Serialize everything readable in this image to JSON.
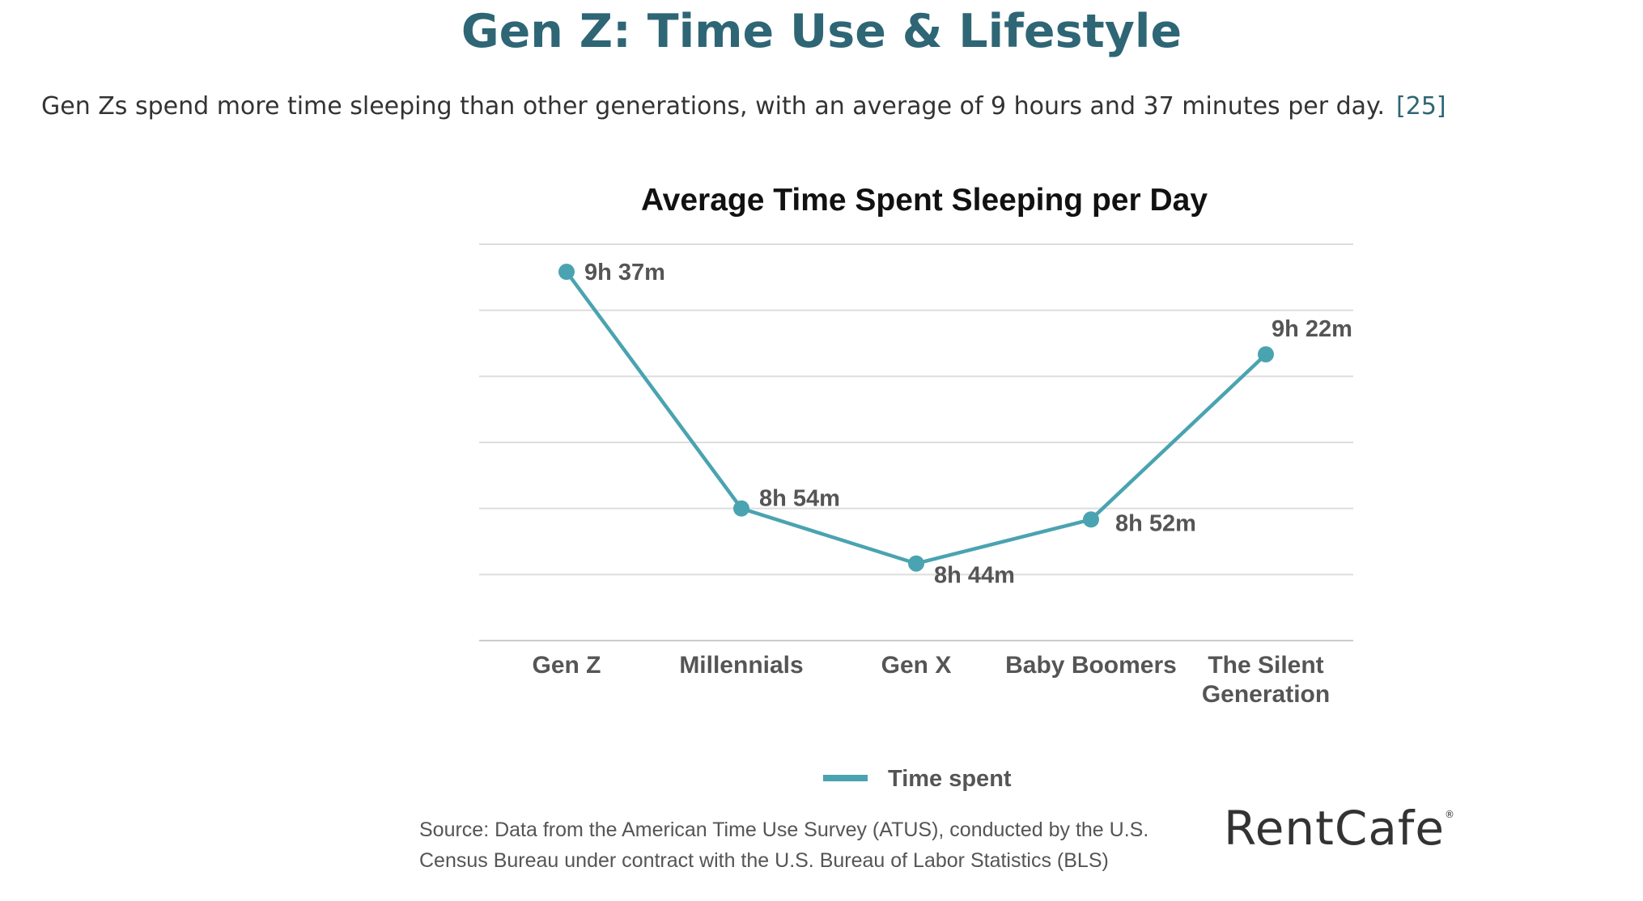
{
  "header": {
    "title": "Gen Z: Time Use & Lifestyle",
    "intro": "Gen Zs spend more time sleeping than other generations, with an average of 9 hours and 37 minutes per day.",
    "citation": "[25]"
  },
  "chart_data": {
    "type": "line",
    "title": "Average Time Spent Sleeping per Day",
    "categories": [
      "Gen Z",
      "Millennials",
      "Gen X",
      "Baby Boomers",
      "The Silent Generation"
    ],
    "category_lines": [
      [
        "Gen Z"
      ],
      [
        "Millennials"
      ],
      [
        "Gen X"
      ],
      [
        "Baby Boomers"
      ],
      [
        "The Silent",
        "Generation"
      ]
    ],
    "series": [
      {
        "name": "Time spent",
        "values": [
          577,
          534,
          524,
          532,
          562
        ],
        "labels": [
          "9h 37m",
          "8h 54m",
          "8h 44m",
          "8h 52m",
          "9h 22m"
        ]
      }
    ],
    "ylim": [
      510,
      582
    ],
    "y_unit": "minutes",
    "grid": true,
    "legend_position": "bottom",
    "color": "#4aa3b0"
  },
  "footer": {
    "source_line1": "Source: Data from the American Time Use Survey (ATUS), conducted by the U.S.",
    "source_line2": "Census Bureau under contract with the U.S. Bureau of Labor Statistics (BLS)",
    "logo_text": "RentCafe",
    "logo_mark": "®"
  }
}
